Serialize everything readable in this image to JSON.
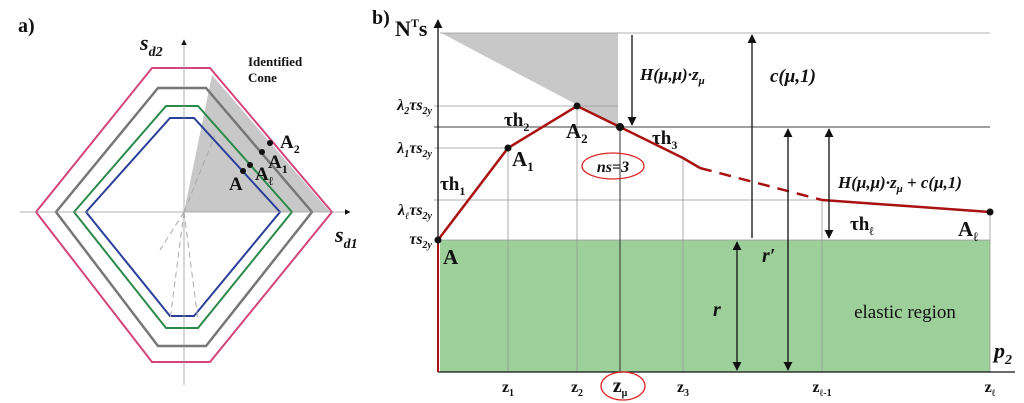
{
  "panel_a": {
    "label": "a)",
    "axis_y": {
      "base": "s",
      "sub": "d2"
    },
    "axis_x": {
      "base": "s",
      "sub": "d1"
    },
    "cone_label": [
      "Identified",
      "Cone"
    ],
    "points": [
      {
        "base": "A",
        "sub": "2"
      },
      {
        "base": "A",
        "sub": "1"
      },
      {
        "base": "A",
        "sub": "ℓ"
      },
      {
        "base": "A"
      }
    ]
  },
  "panel_b": {
    "label": "b)",
    "axis_y": {
      "base": "N",
      "sup": "T",
      "tail": "s"
    },
    "axis_x": {
      "base": "p",
      "sub": "2"
    },
    "y_labels": [
      {
        "pre": "λ",
        "presub": "2",
        "mid": "τs",
        "sub": "2y"
      },
      {
        "pre": "λ",
        "presub": "1",
        "mid": "τs",
        "sub": "2y"
      },
      {
        "pre": "λ",
        "presub": "ℓ",
        "mid": "τs",
        "sub": "2y"
      },
      {
        "pre": "",
        "presub": "",
        "mid": "τs",
        "sub": "2y"
      }
    ],
    "x_labels": [
      {
        "base": "z",
        "sub": "1"
      },
      {
        "base": "z",
        "sub": "2"
      },
      {
        "base": "z",
        "sub": "μ"
      },
      {
        "base": "z",
        "sub": "3"
      },
      {
        "base": "z",
        "sub": "ℓ-1"
      },
      {
        "base": "z",
        "sub": "ℓ"
      }
    ],
    "segments": [
      {
        "base": "τh",
        "sub": "1"
      },
      {
        "base": "τh",
        "sub": "2"
      },
      {
        "base": "τh",
        "sub": "3"
      },
      {
        "base": "τh",
        "sub": "ℓ"
      }
    ],
    "points": [
      {
        "base": "A"
      },
      {
        "base": "A",
        "sub": "1"
      },
      {
        "base": "A",
        "sub": "2"
      },
      {
        "base": "A",
        "sub": "ℓ"
      }
    ],
    "ns": "ns=3",
    "h_label": "H(μ,μ)·z",
    "h_sub": "μ",
    "c_label": "c(μ,1)",
    "hc_label": "H(μ,μ)·z",
    "hc_sub": "μ",
    "hc_tail": " + c(μ,1)",
    "r": "r",
    "r_prime": "r′",
    "region": "elastic region"
  }
}
